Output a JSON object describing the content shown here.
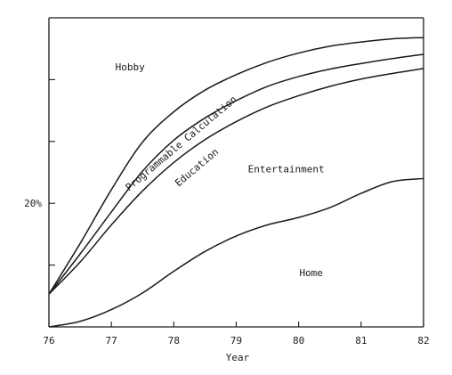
{
  "chart_data": {
    "type": "area",
    "title": "",
    "xlabel": "Year",
    "ylabel": "",
    "xlim": [
      76,
      82
    ],
    "ylim": [
      0,
      50
    ],
    "x_ticks": [
      76,
      77,
      78,
      79,
      80,
      81,
      82
    ],
    "x_tick_labels": [
      "76",
      "77",
      "78",
      "79",
      "80",
      "81",
      "82"
    ],
    "y_ticks": [
      10,
      20,
      30,
      40
    ],
    "y_tick_labels": [
      {
        "value": 20,
        "label": "20%"
      }
    ],
    "grid": false,
    "boundaries": [
      {
        "x": [
          76,
          76.5,
          77,
          77.5,
          78,
          78.5,
          79,
          79.5,
          80,
          80.5,
          81,
          81.5,
          82
        ],
        "y": [
          0.0,
          0.9,
          2.8,
          5.5,
          9.0,
          12.2,
          14.7,
          16.5,
          17.7,
          19.3,
          21.6,
          23.5,
          24.0
        ]
      },
      {
        "x": [
          76,
          76.5,
          77,
          77.5,
          78,
          78.5,
          79,
          79.5,
          80,
          80.5,
          81,
          81.5,
          82
        ],
        "y": [
          5.3,
          10.5,
          16.5,
          22.0,
          26.6,
          30.3,
          33.2,
          35.6,
          37.4,
          38.9,
          40.1,
          41.0,
          41.8
        ]
      },
      {
        "x": [
          76,
          76.5,
          77,
          77.5,
          78,
          78.5,
          79,
          79.5,
          80,
          80.5,
          81,
          81.5,
          82
        ],
        "y": [
          5.3,
          11.8,
          18.6,
          25.2,
          30.2,
          33.8,
          36.6,
          38.9,
          40.5,
          41.7,
          42.6,
          43.4,
          44.1
        ]
      },
      {
        "x": [
          76,
          76.5,
          77,
          77.5,
          78,
          78.5,
          79,
          79.5,
          80,
          80.5,
          81,
          81.5,
          82
        ],
        "y": [
          5.3,
          13.5,
          22.2,
          29.9,
          34.8,
          38.3,
          40.8,
          42.8,
          44.3,
          45.4,
          46.1,
          46.6,
          46.8
        ]
      }
    ],
    "region_labels": [
      {
        "text": "Hobby",
        "x": 77.3,
        "y": 41.5,
        "angle": 0
      },
      {
        "text": "Programmable Calculation",
        "x": 78.15,
        "y": 29.3,
        "angle": -40
      },
      {
        "text": "Education",
        "x": 78.4,
        "y": 25.4,
        "angle": -40
      },
      {
        "text": "Entertainment",
        "x": 79.8,
        "y": 25.0,
        "angle": 0
      },
      {
        "text": "Home",
        "x": 80.2,
        "y": 8.2,
        "angle": 0
      }
    ]
  }
}
